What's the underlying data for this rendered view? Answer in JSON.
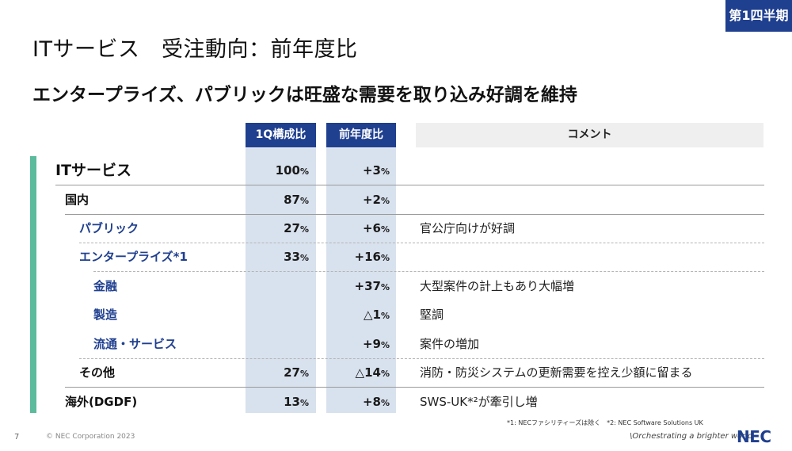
{
  "badge": "第1四半期",
  "title": "ITサービス　受注動向：前年度比",
  "subtitle": "エンタープライズ、パブリックは旺盛な需要を取り込み好調を維持",
  "table": {
    "headers": {
      "share": "1Q構成比",
      "yoy": "前年度比",
      "comment": "コメント"
    },
    "rows": [
      {
        "label": "ITサービス",
        "share": "100",
        "share_unit": "%",
        "yoy": "+3",
        "yoy_unit": "%",
        "comment": ""
      },
      {
        "label": "国内",
        "share": "87",
        "share_unit": "%",
        "yoy": "+2",
        "yoy_unit": "%",
        "comment": ""
      },
      {
        "label": "パブリック",
        "share": "27",
        "share_unit": "%",
        "yoy": "+6",
        "yoy_unit": "%",
        "comment": "官公庁向けが好調"
      },
      {
        "label": "エンタープライズ*1",
        "share": "33",
        "share_unit": "%",
        "yoy": "+16",
        "yoy_unit": "%",
        "comment": ""
      },
      {
        "label": "金融",
        "share": "",
        "share_unit": "",
        "yoy": "+37",
        "yoy_unit": "%",
        "comment": "大型案件の計上もあり大幅増"
      },
      {
        "label": "製造",
        "share": "",
        "share_unit": "",
        "yoy": "△1",
        "yoy_unit": "%",
        "comment": "堅調"
      },
      {
        "label": "流通・サービス",
        "share": "",
        "share_unit": "",
        "yoy": "+9",
        "yoy_unit": "%",
        "comment": "案件の増加"
      },
      {
        "label": "その他",
        "share": "27",
        "share_unit": "%",
        "yoy": "△14",
        "yoy_unit": "%",
        "comment": "消防・防災システムの更新需要を控え少額に留まる"
      },
      {
        "label": "海外(DGDF)",
        "share": "13",
        "share_unit": "%",
        "yoy": "+8",
        "yoy_unit": "%",
        "comment": "SWS-UK*²が牽引し増"
      }
    ]
  },
  "footnotes": "*1: NECファシリティーズは除く　*2: NEC Software Solutions UK",
  "footer": {
    "page_number": "7",
    "copyright": "© NEC Corporation 2023",
    "tagline": "\\Orchestrating a brighter world",
    "logo": "NEC"
  },
  "colors": {
    "accent_blue": "#1f3f8f",
    "accent_green": "#5bbb9c",
    "column_bg": "#d8e2ee"
  }
}
